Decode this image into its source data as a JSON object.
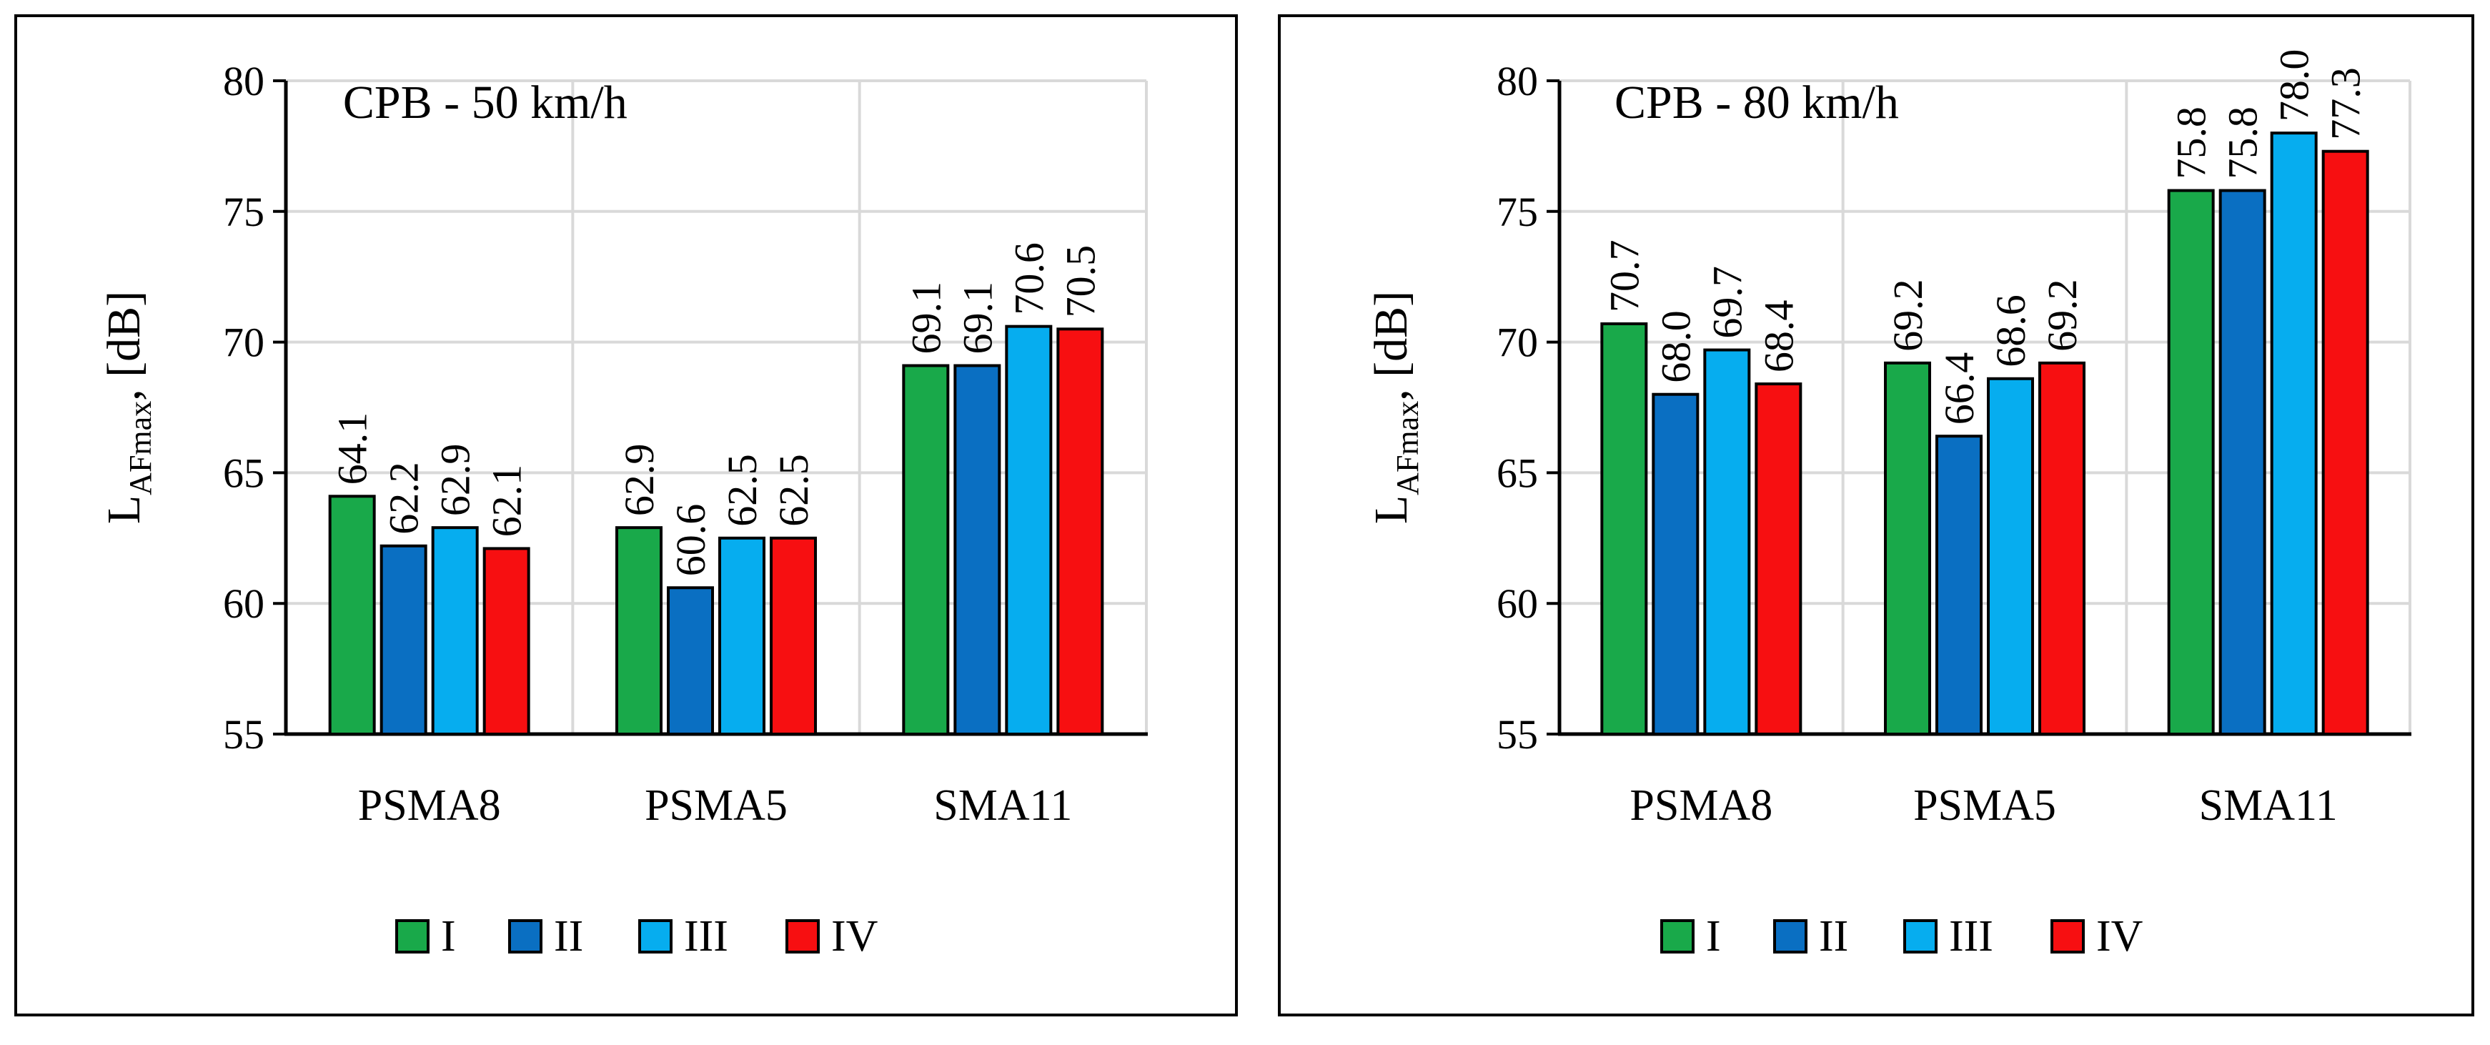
{
  "chart_data": [
    {
      "type": "bar",
      "title": "CPB - 50 km/h",
      "ylabel": {
        "main": "L",
        "sub": "AFmax",
        "suffix": ", [dB]"
      },
      "xlabel": "",
      "ylim": [
        55,
        80
      ],
      "yticks": [
        "55",
        "60",
        "65",
        "70",
        "75",
        "80"
      ],
      "grid": true,
      "legend_position": "bottom",
      "categories": [
        "PSMA8",
        "PSMA5",
        "SMA11"
      ],
      "series": [
        {
          "name": "I",
          "color": "#19A94A",
          "values": [
            64.1,
            62.9,
            69.1
          ],
          "labels": [
            "64.1",
            "62.9",
            "69.1"
          ]
        },
        {
          "name": "II",
          "color": "#0A6FC2",
          "values": [
            62.2,
            60.6,
            69.1
          ],
          "labels": [
            "62.2",
            "60.6",
            "69.1"
          ]
        },
        {
          "name": "III",
          "color": "#06ADEF",
          "values": [
            62.9,
            62.5,
            70.6
          ],
          "labels": [
            "62.9",
            "62.5",
            "70.6"
          ]
        },
        {
          "name": "IV",
          "color": "#F70F11",
          "values": [
            62.1,
            62.5,
            70.5
          ],
          "labels": [
            "62.1",
            "62.5",
            "70.5"
          ]
        }
      ]
    },
    {
      "type": "bar",
      "title": "CPB - 80 km/h",
      "ylabel": {
        "main": "L",
        "sub": "AFmax",
        "suffix": ", [dB]"
      },
      "xlabel": "",
      "ylim": [
        55,
        80
      ],
      "yticks": [
        "55",
        "60",
        "65",
        "70",
        "75",
        "80"
      ],
      "grid": true,
      "legend_position": "bottom",
      "categories": [
        "PSMA8",
        "PSMA5",
        "SMA11"
      ],
      "series": [
        {
          "name": "I",
          "color": "#19A94A",
          "values": [
            70.7,
            69.2,
            75.8
          ],
          "labels": [
            "70.7",
            "69.2",
            "75.8"
          ]
        },
        {
          "name": "II",
          "color": "#0A6FC2",
          "values": [
            68.0,
            66.4,
            75.8
          ],
          "labels": [
            "68.0",
            "66.4",
            "75.8"
          ]
        },
        {
          "name": "III",
          "color": "#06ADEF",
          "values": [
            69.7,
            68.6,
            78.0
          ],
          "labels": [
            "69.7",
            "68.6",
            "78.0"
          ]
        },
        {
          "name": "IV",
          "color": "#F70F11",
          "values": [
            68.4,
            69.2,
            77.3
          ],
          "labels": [
            "68.4",
            "69.2",
            "77.3"
          ]
        }
      ]
    }
  ]
}
